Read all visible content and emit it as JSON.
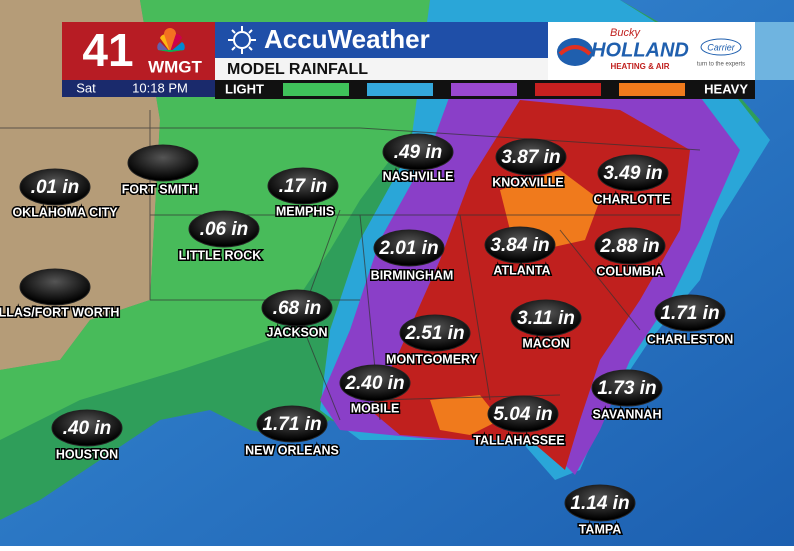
{
  "header": {
    "channel": "41",
    "station": "WMGT",
    "day": "Sat",
    "time": "10:18 PM",
    "brand": "AccuWeather",
    "product": "MODEL RAINFALL",
    "legend_low": "LIGHT",
    "legend_high": "HEAVY",
    "sponsor_script": "Bucky",
    "sponsor_name": "HOLLAND",
    "sponsor_sub": "HEATING & AIR",
    "partner": "Carrier",
    "partner_tag": "turn to the experts"
  },
  "cities": [
    {
      "name": "OKLAHOMA CITY",
      "amount": ".01 in"
    },
    {
      "name": "FORT SMITH"
    },
    {
      "name": "MEMPHIS",
      "amount": ".17 in"
    },
    {
      "name": "NASHVILLE",
      "amount": ".49 in"
    },
    {
      "name": "KNOXVILLE",
      "amount": "3.87 in"
    },
    {
      "name": "CHARLOTTE",
      "amount": "3.49 in"
    },
    {
      "name": "LITTLE ROCK",
      "amount": ".06 in"
    },
    {
      "name": "BIRMINGHAM",
      "amount": "2.01 in"
    },
    {
      "name": "ATLANTA",
      "amount": "3.84 in"
    },
    {
      "name": "COLUMBIA",
      "amount": "2.88 in"
    },
    {
      "name": "DALLAS/FORT WORTH"
    },
    {
      "name": "JACKSON",
      "amount": ".68 in"
    },
    {
      "name": "MONTGOMERY",
      "amount": "2.51 in"
    },
    {
      "name": "MACON",
      "amount": "3.11 in"
    },
    {
      "name": "CHARLESTON",
      "amount": "1.71 in"
    },
    {
      "name": "MOBILE",
      "amount": "2.40 in"
    },
    {
      "name": "SAVANNAH",
      "amount": "1.73 in"
    },
    {
      "name": "HOUSTON",
      "amount": ".40 in"
    },
    {
      "name": "NEW ORLEANS",
      "amount": "1.71 in"
    },
    {
      "name": "TALLAHASSEE",
      "amount": "5.04 in"
    },
    {
      "name": "TAMPA",
      "amount": "1.14 in"
    }
  ]
}
